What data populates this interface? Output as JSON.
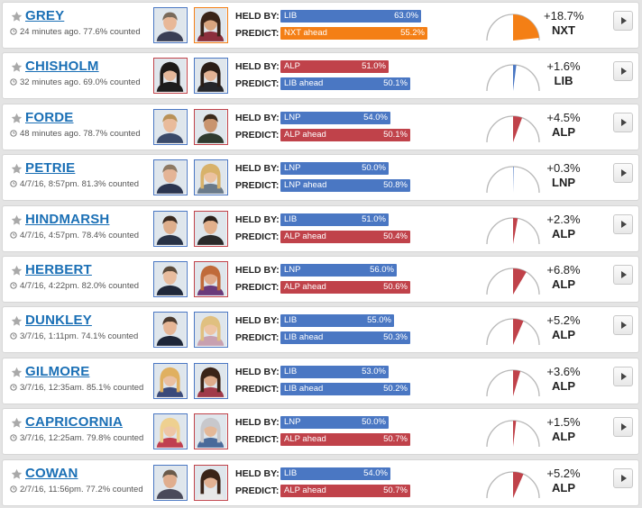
{
  "labels": {
    "held_by": "HELD BY:",
    "predict": "PREDICT:"
  },
  "colors": {
    "LIB": "#4a77c3",
    "ALP": "#c0424a",
    "NXT": "#f47f15",
    "LNP": "#4a77c3"
  },
  "seats": [
    {
      "name": "GREY",
      "updated": "24 minutes ago. 77.6% counted",
      "held_party": "LIB",
      "held_pct": "63.0%",
      "held_value": 63.0,
      "predict_text": "NXT ahead",
      "predict_pct": "55.2%",
      "predict_party": "NXT",
      "predict_value": 55.2,
      "swing": "+18.7%",
      "swing_party": "NXT",
      "swing_value": 18.7
    },
    {
      "name": "CHISHOLM",
      "updated": "32 minutes ago. 69.0% counted",
      "held_party": "ALP",
      "held_pct": "51.0%",
      "held_value": 51.0,
      "predict_text": "LIB ahead",
      "predict_pct": "50.1%",
      "predict_party": "LIB",
      "predict_value": 50.1,
      "swing": "+1.6%",
      "swing_party": "LIB",
      "swing_value": 1.6
    },
    {
      "name": "FORDE",
      "updated": "48 minutes ago. 78.7% counted",
      "held_party": "LNP",
      "held_pct": "54.0%",
      "held_value": 54.0,
      "predict_text": "ALP ahead",
      "predict_pct": "50.1%",
      "predict_party": "ALP",
      "predict_value": 50.1,
      "swing": "+4.5%",
      "swing_party": "ALP",
      "swing_value": 4.5
    },
    {
      "name": "PETRIE",
      "updated": "4/7/16, 8:57pm. 81.3% counted",
      "held_party": "LNP",
      "held_pct": "50.0%",
      "held_value": 50.0,
      "predict_text": "LNP ahead",
      "predict_pct": "50.8%",
      "predict_party": "LNP",
      "predict_value": 50.8,
      "swing": "+0.3%",
      "swing_party": "LNP",
      "swing_value": 0.3
    },
    {
      "name": "HINDMARSH",
      "updated": "4/7/16, 4:57pm. 78.4% counted",
      "held_party": "LIB",
      "held_pct": "51.0%",
      "held_value": 51.0,
      "predict_text": "ALP ahead",
      "predict_pct": "50.4%",
      "predict_party": "ALP",
      "predict_value": 50.4,
      "swing": "+2.3%",
      "swing_party": "ALP",
      "swing_value": 2.3
    },
    {
      "name": "HERBERT",
      "updated": "4/7/16, 4:22pm. 82.0% counted",
      "held_party": "LNP",
      "held_pct": "56.0%",
      "held_value": 56.0,
      "predict_text": "ALP ahead",
      "predict_pct": "50.6%",
      "predict_party": "ALP",
      "predict_value": 50.6,
      "swing": "+6.8%",
      "swing_party": "ALP",
      "swing_value": 6.8
    },
    {
      "name": "DUNKLEY",
      "updated": "3/7/16, 1:11pm. 74.1% counted",
      "held_party": "LIB",
      "held_pct": "55.0%",
      "held_value": 55.0,
      "predict_text": "LIB ahead",
      "predict_pct": "50.3%",
      "predict_party": "LIB",
      "predict_value": 50.3,
      "swing": "+5.2%",
      "swing_party": "ALP",
      "swing_value": 5.2
    },
    {
      "name": "GILMORE",
      "updated": "3/7/16, 12:35am. 85.1% counted",
      "held_party": "LIB",
      "held_pct": "53.0%",
      "held_value": 53.0,
      "predict_text": "LIB ahead",
      "predict_pct": "50.2%",
      "predict_party": "LIB",
      "predict_value": 50.2,
      "swing": "+3.6%",
      "swing_party": "ALP",
      "swing_value": 3.6
    },
    {
      "name": "CAPRICORNIA",
      "updated": "3/7/16, 12:25am. 79.8% counted",
      "held_party": "LNP",
      "held_pct": "50.0%",
      "held_value": 50.0,
      "predict_text": "ALP ahead",
      "predict_pct": "50.7%",
      "predict_party": "ALP",
      "predict_value": 50.7,
      "swing": "+1.5%",
      "swing_party": "ALP",
      "swing_value": 1.5
    },
    {
      "name": "COWAN",
      "updated": "2/7/16, 11:56pm. 77.2% counted",
      "held_party": "LIB",
      "held_pct": "54.0%",
      "held_value": 54.0,
      "predict_text": "ALP ahead",
      "predict_pct": "50.7%",
      "predict_party": "ALP",
      "predict_value": 50.7,
      "swing": "+5.2%",
      "swing_party": "ALP",
      "swing_value": 5.2
    }
  ]
}
